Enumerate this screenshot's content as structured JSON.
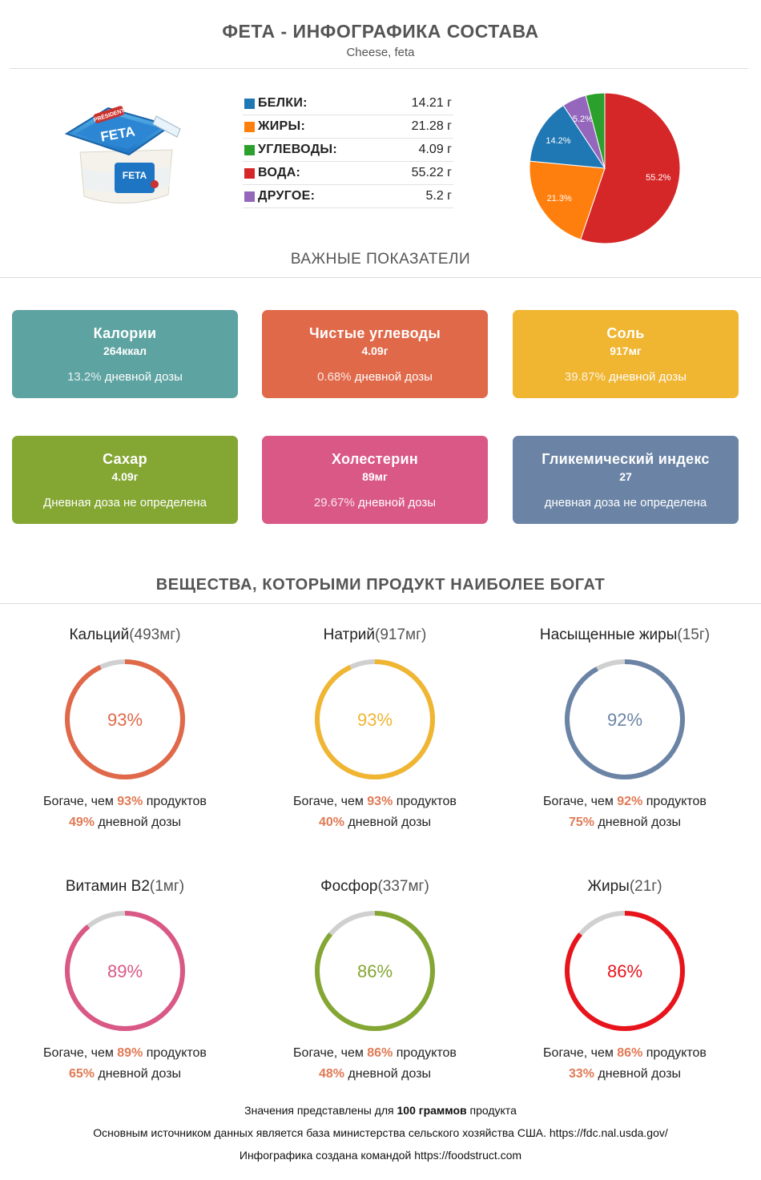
{
  "header": {
    "title": "ФЕТА - ИНФОГРАФИКА СОСТАВА",
    "subtitle": "Cheese, feta"
  },
  "product_image": {
    "icon": "feta-container-image",
    "brand": "PRÉSIDENT",
    "label": "FETA"
  },
  "macros": [
    {
      "name": "БЕЛКИ:",
      "value": "14.21 г",
      "color": "#1f77b4"
    },
    {
      "name": "ЖИРЫ:",
      "value": "21.28 г",
      "color": "#ff7f0e"
    },
    {
      "name": "УГЛЕВОДЫ:",
      "value": "4.09 г",
      "color": "#2ca02c"
    },
    {
      "name": "ВОДА:",
      "value": "55.22 г",
      "color": "#d62728"
    },
    {
      "name": "ДРУГОЕ:",
      "value": "5.2 г",
      "color": "#9467bd"
    }
  ],
  "chart_data": {
    "type": "pie",
    "slices": [
      {
        "label": "55.2%",
        "value": 55.22,
        "color": "#d62728"
      },
      {
        "label": "21.3%",
        "value": 21.28,
        "color": "#ff7f0e"
      },
      {
        "label": "14.2%",
        "value": 14.21,
        "color": "#1f77b4"
      },
      {
        "label": "5.2%",
        "value": 5.2,
        "color": "#9467bd"
      },
      {
        "label": "",
        "value": 4.09,
        "color": "#2ca02c"
      }
    ]
  },
  "important": {
    "heading": "ВАЖНЫЕ ПОКАЗАТЕЛИ",
    "cards": [
      {
        "name": "Калории",
        "value": "264ккал",
        "pct": "13.2%",
        "daily": " дневной дозы",
        "color": "#5da3a1"
      },
      {
        "name": "Чистые углеводы",
        "value": "4.09г",
        "pct": "0.68%",
        "daily": " дневной дозы",
        "color": "#e0694a"
      },
      {
        "name": "Соль",
        "value": "917мг",
        "pct": "39.87%",
        "daily": " дневной дозы",
        "color": "#f0b531"
      },
      {
        "name": "Сахар",
        "value": "4.09г",
        "pct": "",
        "daily": "Дневная доза не определена",
        "color": "#84a633"
      },
      {
        "name": "Холестерин",
        "value": "89мг",
        "pct": "29.67%",
        "daily": " дневной дозы",
        "color": "#d95886"
      },
      {
        "name": "Гликемический индекс",
        "value": "27",
        "pct": "",
        "daily": "дневная доза не определена",
        "color": "#6b84a5"
      }
    ]
  },
  "rich": {
    "heading": "ВЕЩЕСТВА, КОТОРЫМИ ПРОДУКТ НАИБОЛЕЕ БОГАТ",
    "richer_prefix": "Богаче, чем ",
    "richer_suffix": " продуктов",
    "daily_suffix": " дневной дозы",
    "items": [
      {
        "name": "Кальций",
        "amount": "(493мг)",
        "percentile": 93,
        "ring_label": "93%",
        "richer_pct": "93%",
        "daily_pct": "49%",
        "color": "#e0694a"
      },
      {
        "name": "Натрий",
        "amount": "(917мг)",
        "percentile": 93,
        "ring_label": "93%",
        "richer_pct": "93%",
        "daily_pct": "40%",
        "color": "#f0b531"
      },
      {
        "name": "Насыщенные жиры",
        "amount": "(15г)",
        "percentile": 92,
        "ring_label": "92%",
        "richer_pct": "92%",
        "daily_pct": "75%",
        "color": "#6b84a5"
      },
      {
        "name": "Витамин B2",
        "amount": "(1мг)",
        "percentile": 89,
        "ring_label": "89%",
        "richer_pct": "89%",
        "daily_pct": "65%",
        "color": "#d95886"
      },
      {
        "name": "Фосфор",
        "amount": "(337мг)",
        "percentile": 86,
        "ring_label": "86%",
        "richer_pct": "86%",
        "daily_pct": "48%",
        "color": "#84a633"
      },
      {
        "name": "Жиры",
        "amount": "(21г)",
        "percentile": 86,
        "ring_label": "86%",
        "richer_pct": "86%",
        "daily_pct": "33%",
        "color": "#e8141c"
      }
    ]
  },
  "footer": {
    "line1_pre": "Значения представлены для ",
    "line1_bold": "100 граммов",
    "line1_post": " продукта",
    "line2": "Основным источником данных является база министерства сельского хозяйства США. https://fdc.nal.usda.gov/",
    "line3": "Инфографика создана командой https://foodstruct.com"
  }
}
